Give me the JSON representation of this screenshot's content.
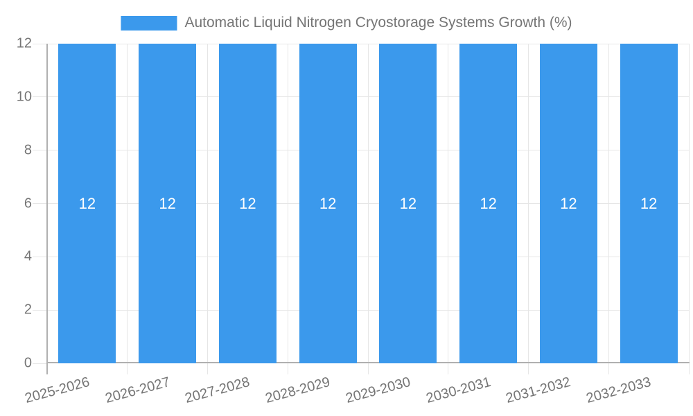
{
  "legend": {
    "label": "Automatic Liquid Nitrogen Cryostorage Systems Growth (%)"
  },
  "chart_data": {
    "type": "bar",
    "title": "Automatic Liquid Nitrogen Cryostorage Systems Growth (%)",
    "categories": [
      "2025-2026",
      "2026-2027",
      "2027-2028",
      "2028-2029",
      "2029-2030",
      "2030-2031",
      "2031-2032",
      "2032-2033"
    ],
    "values": [
      12,
      12,
      12,
      12,
      12,
      12,
      12,
      12
    ],
    "value_labels": [
      "12",
      "12",
      "12",
      "12",
      "12",
      "12",
      "12",
      "12"
    ],
    "xlabel": "",
    "ylabel": "",
    "ylim": [
      0,
      12
    ],
    "yticks": [
      0,
      2,
      4,
      6,
      8,
      10,
      12
    ],
    "grid": true,
    "legend_position": "top-center",
    "colors": {
      "bar": "#3b99ec",
      "value_label": "#ffffff",
      "axis_text": "#757575",
      "gridline": "#e6e6e6",
      "axis_line": "#b0b0b0",
      "background": "#ffffff"
    }
  }
}
